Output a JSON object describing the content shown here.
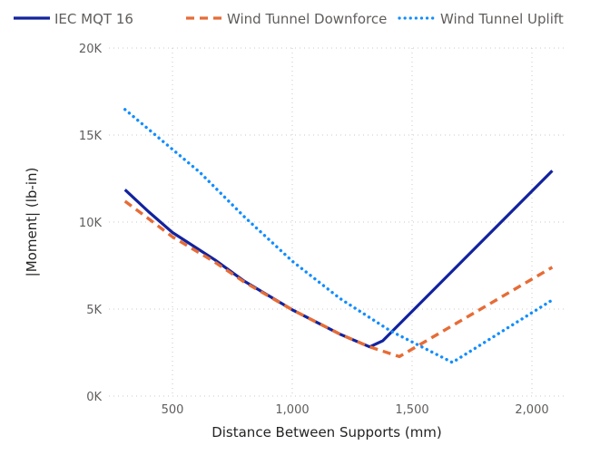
{
  "chart_data": {
    "type": "line",
    "title": "",
    "xlabel": "Distance Between Supports (mm)",
    "ylabel": "|Moment| (lb-in)",
    "xlim": [
      200,
      2100
    ],
    "ylim": [
      0,
      20000
    ],
    "x_ticks": [
      500,
      1000,
      1500,
      2000
    ],
    "x_tick_labels": [
      "500",
      "1,000",
      "1,500",
      "2,000"
    ],
    "y_ticks": [
      0,
      5000,
      10000,
      15000,
      20000
    ],
    "y_tick_labels": [
      "0K",
      "5K",
      "10K",
      "15K",
      "20K"
    ],
    "grid": true,
    "legend_position": "top",
    "series": [
      {
        "name": "IEC MQT 16",
        "color": "#12239E",
        "style": "solid",
        "points": [
          [
            302,
            11860
          ],
          [
            400,
            10600
          ],
          [
            500,
            9400
          ],
          [
            677,
            7830
          ],
          [
            800,
            6600
          ],
          [
            1000,
            4960
          ],
          [
            1200,
            3550
          ],
          [
            1323,
            2830
          ],
          [
            1378,
            3180
          ],
          [
            2085,
            12950
          ]
        ]
      },
      {
        "name": "Wind Tunnel Downforce",
        "color": "#E66C37",
        "style": "dashed",
        "points": [
          [
            302,
            11200
          ],
          [
            400,
            10200
          ],
          [
            500,
            9150
          ],
          [
            677,
            7700
          ],
          [
            800,
            6550
          ],
          [
            1000,
            4960
          ],
          [
            1200,
            3550
          ],
          [
            1323,
            2830
          ],
          [
            1447,
            2270
          ],
          [
            2085,
            7400
          ]
        ]
      },
      {
        "name": "Wind Tunnel Uplift",
        "color": "#118DFF",
        "style": "dotted",
        "points": [
          [
            302,
            16470
          ],
          [
            614,
            12860
          ],
          [
            800,
            10300
          ],
          [
            1001,
            7740
          ],
          [
            1200,
            5600
          ],
          [
            1409,
            3750
          ],
          [
            1668,
            1930
          ],
          [
            2085,
            5520
          ]
        ]
      }
    ]
  }
}
